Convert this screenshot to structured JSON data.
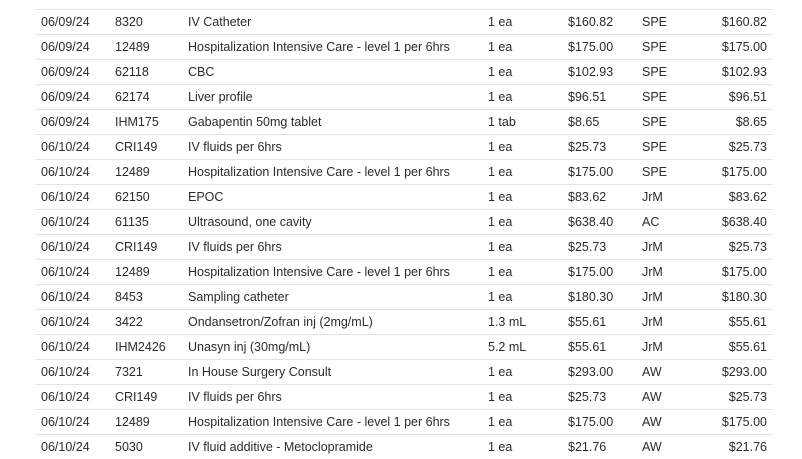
{
  "rows": [
    {
      "date": "06/09/24",
      "code": "8320",
      "description": "IV Catheter",
      "qty": "1 ea",
      "price": "$160.82",
      "staff": "SPE",
      "total": "$160.82"
    },
    {
      "date": "06/09/24",
      "code": "12489",
      "description": "Hospitalization Intensive Care - level 1 per 6hrs",
      "qty": "1 ea",
      "price": "$175.00",
      "staff": "SPE",
      "total": "$175.00"
    },
    {
      "date": "06/09/24",
      "code": "62118",
      "description": "CBC",
      "qty": "1 ea",
      "price": "$102.93",
      "staff": "SPE",
      "total": "$102.93"
    },
    {
      "date": "06/09/24",
      "code": "62174",
      "description": "Liver profile",
      "qty": "1 ea",
      "price": "$96.51",
      "staff": "SPE",
      "total": "$96.51"
    },
    {
      "date": "06/09/24",
      "code": "IHM175",
      "description": "Gabapentin 50mg tablet",
      "qty": "1 tab",
      "price": "$8.65",
      "staff": "SPE",
      "total": "$8.65"
    },
    {
      "date": "06/10/24",
      "code": "CRI149",
      "description": "IV fluids per 6hrs",
      "qty": "1 ea",
      "price": "$25.73",
      "staff": "SPE",
      "total": "$25.73"
    },
    {
      "date": "06/10/24",
      "code": "12489",
      "description": "Hospitalization Intensive Care - level 1 per 6hrs",
      "qty": "1 ea",
      "price": "$175.00",
      "staff": "SPE",
      "total": "$175.00"
    },
    {
      "date": "06/10/24",
      "code": "62150",
      "description": "EPOC",
      "qty": "1 ea",
      "price": "$83.62",
      "staff": "JrM",
      "total": "$83.62"
    },
    {
      "date": "06/10/24",
      "code": "61135",
      "description": "Ultrasound, one cavity",
      "qty": "1 ea",
      "price": "$638.40",
      "staff": "AC",
      "total": "$638.40"
    },
    {
      "date": "06/10/24",
      "code": "CRI149",
      "description": "IV fluids per 6hrs",
      "qty": "1 ea",
      "price": "$25.73",
      "staff": "JrM",
      "total": "$25.73"
    },
    {
      "date": "06/10/24",
      "code": "12489",
      "description": "Hospitalization Intensive Care - level 1 per 6hrs",
      "qty": "1 ea",
      "price": "$175.00",
      "staff": "JrM",
      "total": "$175.00"
    },
    {
      "date": "06/10/24",
      "code": "8453",
      "description": "Sampling catheter",
      "qty": "1 ea",
      "price": "$180.30",
      "staff": "JrM",
      "total": "$180.30"
    },
    {
      "date": "06/10/24",
      "code": "3422",
      "description": "Ondansetron/Zofran inj (2mg/mL)",
      "qty": "1.3 mL",
      "price": "$55.61",
      "staff": "JrM",
      "total": "$55.61"
    },
    {
      "date": "06/10/24",
      "code": "IHM2426",
      "description": "Unasyn inj (30mg/mL)",
      "qty": "5.2 mL",
      "price": "$55.61",
      "staff": "JrM",
      "total": "$55.61"
    },
    {
      "date": "06/10/24",
      "code": "7321",
      "description": "In House Surgery Consult",
      "qty": "1 ea",
      "price": "$293.00",
      "staff": "AW",
      "total": "$293.00"
    },
    {
      "date": "06/10/24",
      "code": "CRI149",
      "description": "IV fluids per 6hrs",
      "qty": "1 ea",
      "price": "$25.73",
      "staff": "AW",
      "total": "$25.73"
    },
    {
      "date": "06/10/24",
      "code": "12489",
      "description": "Hospitalization Intensive Care - level 1 per 6hrs",
      "qty": "1 ea",
      "price": "$175.00",
      "staff": "AW",
      "total": "$175.00"
    },
    {
      "date": "06/10/24",
      "code": "5030",
      "description": "IV fluid additive - Metoclopramide",
      "qty": "1 ea",
      "price": "$21.76",
      "staff": "AW",
      "total": "$21.76"
    }
  ]
}
